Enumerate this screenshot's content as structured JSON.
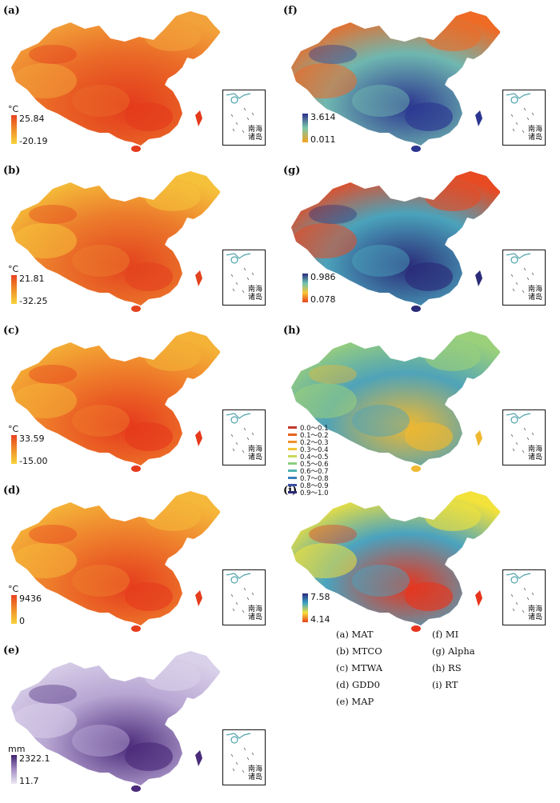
{
  "panels": [
    {
      "id": "a",
      "label": "(a)",
      "unit": "°C",
      "max": "25.84",
      "min": "-20.19",
      "ramp": [
        "#f7d23a",
        "#f0902a",
        "#e8421e"
      ],
      "base": "#ea6a27",
      "accent": "#f2a23a",
      "hot": "#e33a1c"
    },
    {
      "id": "b",
      "label": "(b)",
      "unit": "°C",
      "max": "21.81",
      "min": "-32.25",
      "ramp": [
        "#f7d23a",
        "#f0902a",
        "#e8421e"
      ],
      "base": "#ec7d2c",
      "accent": "#f5c13a",
      "hot": "#e3421e"
    },
    {
      "id": "c",
      "label": "(c)",
      "unit": "°C",
      "max": "33.59",
      "min": "-15.00",
      "ramp": [
        "#f7d23a",
        "#f0902a",
        "#e8421e"
      ],
      "base": "#ee7a2a",
      "accent": "#f4b237",
      "hot": "#e5391c"
    },
    {
      "id": "d",
      "label": "(d)",
      "unit": "°C",
      "max": "9436",
      "min": "0",
      "ramp": [
        "#f7d23a",
        "#f0902a",
        "#e8421e"
      ],
      "base": "#ee7f2c",
      "accent": "#f5b83a",
      "hot": "#e53c1d"
    },
    {
      "id": "e",
      "label": "(e)",
      "unit": "mm",
      "max": "2322.1",
      "min": "11.7",
      "ramp": [
        "#ece7f4",
        "#a58ec6",
        "#3f1f6e"
      ],
      "base": "#b8a6d3",
      "accent": "#d9d0e9",
      "hot": "#4a2a7a"
    },
    {
      "id": "f",
      "label": "(f)",
      "unit": "",
      "max": "3.614",
      "min": "0.011",
      "ramp": [
        "#f6a11f",
        "#7cc7a8",
        "#2c2f8c"
      ],
      "base": "#6fb7b0",
      "accent": "#ee6a25",
      "hot": "#2b3590"
    },
    {
      "id": "g",
      "label": "(g)",
      "unit": "",
      "max": "0.986",
      "min": "0.078",
      "ramp": [
        "#e8421e",
        "#f7c634",
        "#6cc3b0",
        "#2a2a7c"
      ],
      "base": "#4aa3bb",
      "accent": "#e84a22",
      "hot": "#2a2a78"
    },
    {
      "id": "h",
      "label": "(h)",
      "unit": "",
      "max": "",
      "min": "",
      "ramp": [],
      "base": "#4fa3b8",
      "accent": "#9bd07a",
      "hot": "#f0b830"
    },
    {
      "id": "i",
      "label": "(i)",
      "unit": "",
      "max": "7.58",
      "min": "4.14",
      "ramp": [
        "#e8421e",
        "#f5e23a",
        "#3aa3c6",
        "#2a2a7c"
      ],
      "base": "#4aa3bf",
      "accent": "#f2e23a",
      "hot": "#e8341c"
    }
  ],
  "class_legend": [
    {
      "label": "0.0～0.1",
      "color": "#c0392b"
    },
    {
      "label": "0.1～0.2",
      "color": "#e8621e"
    },
    {
      "label": "0.2～0.3",
      "color": "#f1902a"
    },
    {
      "label": "0.3～0.4",
      "color": "#f4c533"
    },
    {
      "label": "0.4～0.5",
      "color": "#c8d95a"
    },
    {
      "label": "0.5～0.6",
      "color": "#8ccf7e"
    },
    {
      "label": "0.6～0.7",
      "color": "#4fb3b1"
    },
    {
      "label": "0.7～0.8",
      "color": "#3a7fbb"
    },
    {
      "label": "0.8～0.9",
      "color": "#3a4fa6"
    },
    {
      "label": "0.9～1.0",
      "color": "#2c2a7a"
    }
  ],
  "inset_text": [
    "南海",
    "诸岛"
  ],
  "key": {
    "left": [
      "(a) MAT",
      "(b) MTCO",
      "(c) MTWA",
      "(d) GDD0",
      "(e) MAP"
    ],
    "right": [
      "(f) MI",
      "(g) Alpha",
      "(h) RS",
      "(i) RT"
    ]
  }
}
